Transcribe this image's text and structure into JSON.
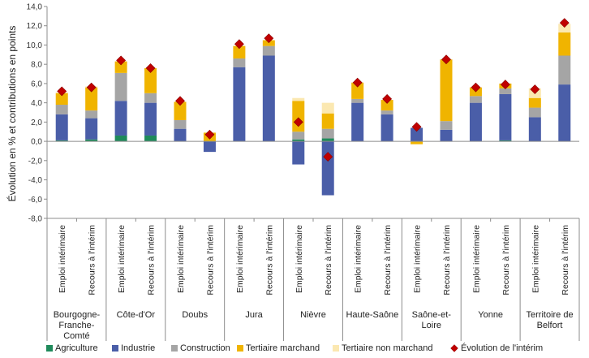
{
  "chart_data": {
    "type": "bar",
    "stacked": true,
    "ylabel": "Évolution en % et contributions en points",
    "ylim": [
      -8,
      14
    ],
    "yticks": [
      "-8,0",
      "-6,0",
      "-4,0",
      "-2,0",
      "0,0",
      "2,0",
      "4,0",
      "6,0",
      "8,0",
      "10,0",
      "12,0",
      "14,0"
    ],
    "groups": [
      {
        "name": "Bourgogne-\nFranche-\nComté",
        "lines": [
          "Bourgogne-",
          "Franche-",
          "Comté"
        ]
      },
      {
        "name": "Côte-d'Or",
        "lines": [
          "Côte-d'Or"
        ]
      },
      {
        "name": "Doubs",
        "lines": [
          "Doubs"
        ]
      },
      {
        "name": "Jura",
        "lines": [
          "Jura"
        ]
      },
      {
        "name": "Nièvre",
        "lines": [
          "Nièvre"
        ]
      },
      {
        "name": "Haute-Saône",
        "lines": [
          "Haute-Saône"
        ]
      },
      {
        "name": "Saône-et-\nLoire",
        "lines": [
          "Saône-et-",
          "Loire"
        ]
      },
      {
        "name": "Yonne",
        "lines": [
          "Yonne"
        ]
      },
      {
        "name": "Territoire de\nBelfort",
        "lines": [
          "Territoire de",
          "Belfort"
        ]
      }
    ],
    "subcategories": [
      "Emploi intérimaire",
      "Recours à l'intérim"
    ],
    "series": [
      {
        "name": "Agriculture",
        "color": "#1f8a5b",
        "values": [
          [
            0.1,
            0.2
          ],
          [
            0.6,
            0.6
          ],
          [
            0.0,
            0.0
          ],
          [
            0.0,
            0.0
          ],
          [
            0.2,
            0.3
          ],
          [
            0.0,
            0.0
          ],
          [
            0.0,
            0.0
          ],
          [
            0.0,
            0.1
          ],
          [
            0.0,
            0.0
          ]
        ]
      },
      {
        "name": "Industrie",
        "color": "#4a5ea8",
        "values": [
          [
            2.7,
            2.2
          ],
          [
            3.6,
            3.4
          ],
          [
            1.3,
            -1.1
          ],
          [
            7.7,
            8.9
          ],
          [
            -2.4,
            -5.6
          ],
          [
            4.0,
            2.8
          ],
          [
            1.4,
            1.2
          ],
          [
            4.0,
            4.8
          ],
          [
            2.5,
            5.9
          ]
        ]
      },
      {
        "name": "Construction",
        "color": "#a5a5a5",
        "values": [
          [
            1.0,
            0.8
          ],
          [
            2.9,
            1.0
          ],
          [
            0.9,
            0.0
          ],
          [
            0.9,
            1.0
          ],
          [
            0.8,
            1.0
          ],
          [
            0.4,
            0.4
          ],
          [
            0.0,
            0.9
          ],
          [
            0.7,
            0.6
          ],
          [
            1.0,
            3.0
          ]
        ]
      },
      {
        "name": "Tertiaire marchand",
        "color": "#f0b400",
        "values": [
          [
            1.2,
            2.4
          ],
          [
            1.2,
            2.6
          ],
          [
            1.9,
            0.9
          ],
          [
            1.3,
            0.6
          ],
          [
            3.2,
            1.6
          ],
          [
            1.7,
            1.1
          ],
          [
            -0.3,
            6.4
          ],
          [
            0.9,
            0.5
          ],
          [
            1.0,
            2.4
          ]
        ]
      },
      {
        "name": "Tertiaire non marchand",
        "color": "#fbe8b1",
        "values": [
          [
            0.1,
            0.1
          ],
          [
            0.0,
            0.0
          ],
          [
            0.0,
            0.0
          ],
          [
            0.0,
            0.0
          ],
          [
            0.3,
            1.1
          ],
          [
            0.0,
            0.0
          ],
          [
            0.0,
            0.0
          ],
          [
            0.0,
            0.0
          ],
          [
            1.0,
            0.9
          ]
        ]
      }
    ],
    "line_series": {
      "name": "Évolution de l'intérim",
      "color": "#c00000",
      "marker": "diamond",
      "values": [
        [
          5.2,
          5.6
        ],
        [
          8.4,
          7.6
        ],
        [
          4.2,
          0.7
        ],
        [
          10.1,
          10.7
        ],
        [
          2.0,
          -1.6
        ],
        [
          6.1,
          4.4
        ],
        [
          1.5,
          8.5
        ],
        [
          5.6,
          5.9
        ],
        [
          5.4,
          12.3
        ]
      ]
    },
    "legend": {
      "position": "bottom"
    },
    "grid": false
  }
}
